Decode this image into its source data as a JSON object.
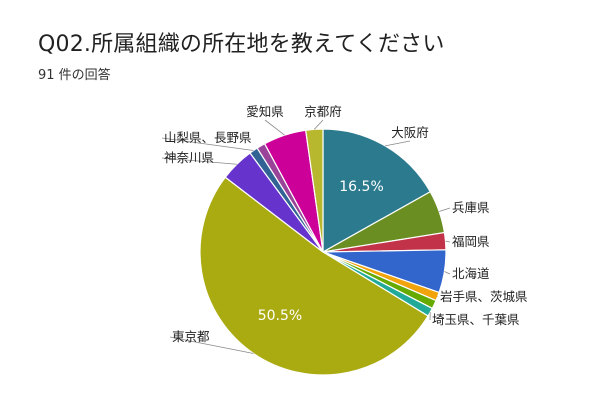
{
  "header": {
    "title": "Q02.所属組織の所在地を教えてください",
    "subtitle": "91 件の回答"
  },
  "chart_data": {
    "type": "pie",
    "title": "Q02.所属組織の所在地を教えてください",
    "subtitle": "91 件の回答",
    "slices": [
      {
        "label": "大阪府",
        "count": 15,
        "percent": 16.5,
        "color": "#2b7a8e",
        "show_percent": true
      },
      {
        "label": "兵庫県",
        "count": 5,
        "color": "#6b8e23"
      },
      {
        "label": "福岡県",
        "count": 2,
        "color": "#c2334a"
      },
      {
        "label": "北海道",
        "count": 5,
        "color": "#3366cc"
      },
      {
        "label": "岩手県、茨城県",
        "count": 1,
        "color": "#f0a30a"
      },
      {
        "label": "",
        "count": 1,
        "color": "#66aa00"
      },
      {
        "label": "埼玉県、千葉県",
        "count": 1,
        "color": "#22aa99"
      },
      {
        "label": "東京都",
        "count": 46,
        "percent": 50.5,
        "color": "#aaaa11",
        "show_percent": true
      },
      {
        "label": "神奈川県",
        "count": 4,
        "color": "#6633cc"
      },
      {
        "label": "山梨県、長野県",
        "count": 1,
        "color": "#316395"
      },
      {
        "label": "",
        "count": 1,
        "color": "#994499"
      },
      {
        "label": "愛知県",
        "count": 5,
        "color": "#cc0099"
      },
      {
        "label": "京都府",
        "count": 2,
        "color": "#b8b82e"
      }
    ]
  }
}
